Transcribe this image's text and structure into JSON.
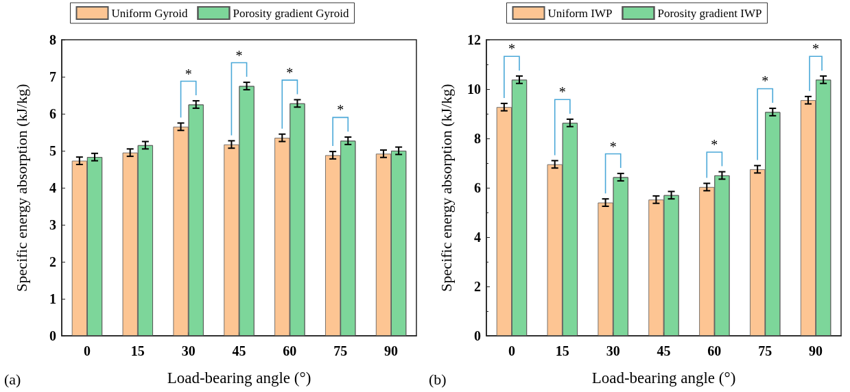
{
  "chart_data": [
    {
      "type": "bar",
      "xlabel": "Load-bearing angle (°)",
      "ylabel": "Specific energy absorption (kJ/kg)",
      "categories": [
        "0",
        "15",
        "30",
        "45",
        "60",
        "75",
        "90"
      ],
      "series": [
        {
          "name": "Uniform Gyroid",
          "color": "#fdc593",
          "values": [
            4.73,
            4.95,
            5.65,
            5.17,
            5.35,
            4.88,
            4.92
          ],
          "errors": [
            0.1,
            0.1,
            0.1,
            0.1,
            0.1,
            0.1,
            0.1
          ]
        },
        {
          "name": "Porosity gradient Gyroid",
          "color": "#7dd69a",
          "values": [
            4.83,
            5.15,
            6.25,
            6.75,
            6.28,
            5.27,
            5.0
          ],
          "errors": [
            0.1,
            0.1,
            0.1,
            0.1,
            0.1,
            0.1,
            0.1
          ]
        }
      ],
      "ylim": [
        0,
        8
      ],
      "yticks": [
        0,
        1,
        2,
        3,
        4,
        5,
        6,
        7,
        8
      ],
      "legend": "top",
      "annotations": [
        "(a)",
        {
          "text": "*",
          "x": "30",
          "y": 6.25
        },
        {
          "text": "*",
          "x": "45",
          "y": 6.75
        },
        {
          "text": "*",
          "x": "60",
          "y": 6.28
        },
        {
          "text": "*",
          "x": "75",
          "y": 5.27
        }
      ]
    },
    {
      "type": "bar",
      "xlabel": "Load-bearing angle (°)",
      "ylabel": "Specific energy absorption (kJ/kg)",
      "categories": [
        "0",
        "15",
        "30",
        "45",
        "60",
        "75",
        "90"
      ],
      "series": [
        {
          "name": "Uniform IWP",
          "color": "#fdc593",
          "values": [
            9.27,
            6.95,
            5.4,
            5.52,
            6.03,
            6.75,
            9.55
          ],
          "errors": [
            0.15,
            0.15,
            0.15,
            0.15,
            0.15,
            0.15,
            0.15
          ]
        },
        {
          "name": "Porosity gradient IWP",
          "color": "#7dd69a",
          "values": [
            10.38,
            8.63,
            6.43,
            5.7,
            6.5,
            9.07,
            10.38
          ],
          "errors": [
            0.15,
            0.15,
            0.15,
            0.15,
            0.15,
            0.15,
            0.15
          ]
        }
      ],
      "ylim": [
        0,
        12
      ],
      "yticks": [
        0,
        2,
        4,
        6,
        8,
        10,
        12
      ],
      "legend": "top",
      "annotations": [
        "(b)",
        {
          "text": "*",
          "x": "0",
          "y": 10.38
        },
        {
          "text": "*",
          "x": "15",
          "y": 8.63
        },
        {
          "text": "*",
          "x": "30",
          "y": 6.43
        },
        {
          "text": "*",
          "x": "60",
          "y": 6.5
        },
        {
          "text": "*",
          "x": "75",
          "y": 9.07
        },
        {
          "text": "*",
          "x": "90",
          "y": 10.38
        }
      ]
    }
  ]
}
